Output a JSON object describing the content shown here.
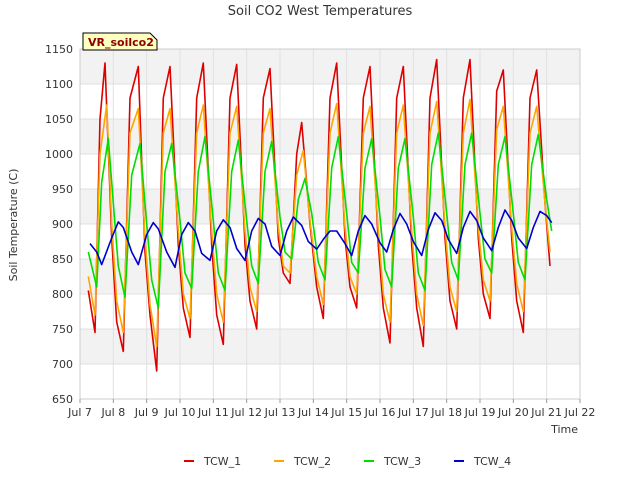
{
  "chart_data": {
    "type": "line",
    "title": "Soil CO2 West Temperatures",
    "xlabel": "Time",
    "ylabel": "Soil Temperature (C)",
    "tag_label": "VR_soilco2",
    "ylim": [
      650,
      1150
    ],
    "yticks": [
      650,
      700,
      750,
      800,
      850,
      900,
      950,
      1000,
      1050,
      1100,
      1150
    ],
    "xlim": [
      7,
      22
    ],
    "xticks": [
      7,
      8,
      9,
      10,
      11,
      12,
      13,
      14,
      15,
      16,
      17,
      18,
      19,
      20,
      21,
      22
    ],
    "xtick_labels": [
      "Jul 7",
      "Jul 8",
      "Jul 9",
      "Jul 10",
      "Jul 11",
      "Jul 12",
      "Jul 13",
      "Jul 14",
      "Jul 15",
      "Jul 16",
      "Jul 17",
      "Jul 18",
      "Jul 19",
      "Jul 20",
      "Jul 21",
      "Jul 22"
    ],
    "legend_position": "bottom",
    "grid": true,
    "series": [
      {
        "name": "TCW_1",
        "color": "#dd0000",
        "x": [
          7.25,
          7.45,
          7.6,
          7.75,
          7.95,
          8.1,
          8.3,
          8.5,
          8.75,
          8.95,
          9.1,
          9.3,
          9.5,
          9.7,
          9.95,
          10.1,
          10.3,
          10.5,
          10.7,
          10.95,
          11.1,
          11.3,
          11.5,
          11.7,
          11.95,
          12.1,
          12.3,
          12.5,
          12.7,
          12.95,
          13.1,
          13.3,
          13.5,
          13.65,
          13.9,
          14.1,
          14.3,
          14.5,
          14.7,
          14.95,
          15.1,
          15.3,
          15.5,
          15.7,
          15.95,
          16.1,
          16.3,
          16.5,
          16.7,
          16.95,
          17.1,
          17.3,
          17.5,
          17.7,
          17.95,
          18.1,
          18.3,
          18.5,
          18.7,
          18.95,
          19.1,
          19.3,
          19.5,
          19.7,
          19.95,
          20.1,
          20.3,
          20.5,
          20.7,
          20.95,
          21.1
        ],
        "values": [
          805,
          745,
          1050,
          1130,
          880,
          760,
          718,
          1080,
          1125,
          860,
          770,
          690,
          1080,
          1125,
          870,
          780,
          738,
          1080,
          1130,
          870,
          770,
          728,
          1080,
          1128,
          870,
          790,
          750,
          1080,
          1122,
          880,
          830,
          815,
          1000,
          1045,
          900,
          810,
          765,
          1080,
          1130,
          880,
          810,
          780,
          1080,
          1125,
          870,
          780,
          730,
          1080,
          1125,
          870,
          780,
          725,
          1080,
          1135,
          880,
          790,
          750,
          1080,
          1135,
          880,
          800,
          765,
          1090,
          1120,
          880,
          790,
          745,
          1080,
          1120,
          930,
          840
        ]
      },
      {
        "name": "TCW_2",
        "color": "#ffa500",
        "x": [
          7.25,
          7.45,
          7.6,
          7.8,
          7.95,
          8.1,
          8.3,
          8.5,
          8.75,
          8.95,
          9.1,
          9.3,
          9.5,
          9.7,
          9.95,
          10.1,
          10.3,
          10.5,
          10.7,
          10.95,
          11.1,
          11.3,
          11.5,
          11.7,
          11.95,
          12.1,
          12.3,
          12.5,
          12.7,
          12.95,
          13.1,
          13.3,
          13.5,
          13.7,
          13.9,
          14.1,
          14.3,
          14.5,
          14.7,
          14.95,
          15.1,
          15.3,
          15.5,
          15.7,
          15.95,
          16.1,
          16.3,
          16.5,
          16.7,
          16.95,
          17.1,
          17.3,
          17.5,
          17.7,
          17.95,
          18.1,
          18.3,
          18.5,
          18.7,
          18.95,
          19.1,
          19.3,
          19.5,
          19.7,
          19.95,
          20.1,
          20.3,
          20.5,
          20.7,
          20.95,
          21.1
        ],
        "values": [
          825,
          770,
          1000,
          1070,
          900,
          790,
          745,
          1030,
          1065,
          880,
          785,
          725,
          1030,
          1065,
          890,
          800,
          765,
          1030,
          1070,
          890,
          800,
          760,
          1030,
          1068,
          890,
          810,
          775,
          1030,
          1065,
          895,
          840,
          830,
          970,
          1005,
          905,
          825,
          785,
          1030,
          1072,
          895,
          825,
          800,
          1030,
          1068,
          890,
          800,
          760,
          1030,
          1070,
          890,
          800,
          755,
          1030,
          1075,
          895,
          810,
          775,
          1030,
          1078,
          895,
          820,
          790,
          1035,
          1068,
          895,
          815,
          775,
          1030,
          1068,
          930,
          860
        ]
      },
      {
        "name": "TCW_3",
        "color": "#00dd00",
        "x": [
          7.25,
          7.5,
          7.65,
          7.85,
          8.0,
          8.15,
          8.35,
          8.55,
          8.8,
          9.0,
          9.15,
          9.35,
          9.55,
          9.75,
          10.0,
          10.15,
          10.35,
          10.55,
          10.75,
          11.0,
          11.15,
          11.35,
          11.55,
          11.75,
          12.0,
          12.15,
          12.35,
          12.55,
          12.75,
          13.0,
          13.15,
          13.35,
          13.55,
          13.75,
          13.95,
          14.15,
          14.35,
          14.55,
          14.75,
          15.0,
          15.15,
          15.35,
          15.55,
          15.75,
          16.0,
          16.15,
          16.35,
          16.55,
          16.75,
          17.0,
          17.15,
          17.35,
          17.55,
          17.75,
          18.0,
          18.15,
          18.35,
          18.55,
          18.75,
          19.0,
          19.15,
          19.35,
          19.55,
          19.75,
          20.0,
          20.15,
          20.35,
          20.55,
          20.75,
          21.0,
          21.15
        ],
        "values": [
          860,
          810,
          960,
          1022,
          930,
          840,
          795,
          970,
          1015,
          900,
          820,
          780,
          975,
          1015,
          905,
          830,
          808,
          975,
          1025,
          905,
          830,
          805,
          975,
          1020,
          905,
          840,
          815,
          975,
          1018,
          910,
          860,
          850,
          935,
          965,
          915,
          845,
          820,
          980,
          1025,
          915,
          845,
          830,
          980,
          1022,
          910,
          835,
          810,
          980,
          1022,
          910,
          830,
          805,
          985,
          1030,
          915,
          845,
          820,
          985,
          1030,
          915,
          850,
          830,
          985,
          1025,
          915,
          845,
          820,
          985,
          1028,
          935,
          890
        ]
      },
      {
        "name": "TCW_4",
        "color": "#0000cc",
        "x": [
          7.3,
          7.5,
          7.65,
          7.95,
          8.15,
          8.3,
          8.55,
          8.75,
          9.0,
          9.2,
          9.35,
          9.6,
          9.85,
          10.05,
          10.25,
          10.45,
          10.65,
          10.9,
          11.1,
          11.3,
          11.5,
          11.7,
          11.95,
          12.15,
          12.35,
          12.55,
          12.75,
          13.0,
          13.2,
          13.4,
          13.65,
          13.85,
          14.1,
          14.3,
          14.5,
          14.7,
          14.95,
          15.15,
          15.35,
          15.55,
          15.75,
          16.0,
          16.2,
          16.4,
          16.6,
          16.8,
          17.0,
          17.25,
          17.45,
          17.65,
          17.85,
          18.05,
          18.3,
          18.5,
          18.7,
          18.9,
          19.1,
          19.35,
          19.55,
          19.75,
          19.95,
          20.15,
          20.4,
          20.6,
          20.8,
          21.0,
          21.15
        ],
        "values": [
          872,
          860,
          842,
          880,
          903,
          895,
          860,
          842,
          885,
          902,
          893,
          860,
          838,
          885,
          902,
          890,
          858,
          848,
          890,
          906,
          895,
          865,
          848,
          890,
          908,
          900,
          868,
          855,
          890,
          910,
          898,
          875,
          864,
          878,
          890,
          890,
          872,
          855,
          890,
          912,
          900,
          873,
          860,
          892,
          915,
          900,
          875,
          855,
          892,
          916,
          905,
          878,
          858,
          895,
          918,
          905,
          880,
          862,
          895,
          920,
          905,
          880,
          865,
          895,
          918,
          912,
          902
        ]
      }
    ]
  }
}
